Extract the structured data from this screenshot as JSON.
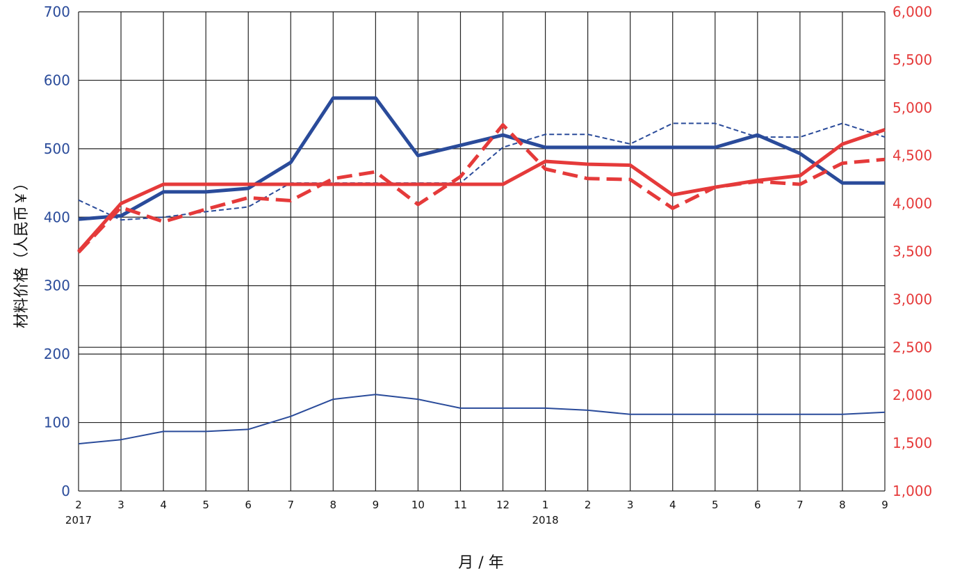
{
  "chart_data": {
    "type": "line",
    "title": "",
    "xlabel": "月 / 年",
    "ylabel": "材料价格（人民币￥）",
    "y2label": "",
    "x_ticks": [
      "2",
      "3",
      "4",
      "5",
      "6",
      "7",
      "8",
      "9",
      "10",
      "11",
      "12",
      "1",
      "2",
      "3",
      "4",
      "5",
      "6",
      "7",
      "8",
      "9"
    ],
    "x_year_labels": [
      {
        "index": 0,
        "label": "2017"
      },
      {
        "index": 11,
        "label": "2018"
      }
    ],
    "ylim": [
      0,
      700
    ],
    "y_ticks": [
      "0",
      "100",
      "200",
      "300",
      "400",
      "500",
      "600",
      "700"
    ],
    "y2lim": [
      1000,
      6000
    ],
    "y2_ticks": [
      "1,000",
      "1,500",
      "2,000",
      "2,500",
      "3,000",
      "3,500",
      "4,000",
      "4,500",
      "5,000",
      "5,500",
      "6,000"
    ],
    "grid": true,
    "colors": {
      "blue": "#2a4b9a",
      "red": "#e53a3a"
    },
    "series": [
      {
        "axis": "left",
        "style": "thick-solid",
        "color": "#2a4b9a",
        "values": [
          397,
          402,
          437,
          437,
          442,
          480,
          574,
          574,
          490,
          505,
          520,
          502,
          502,
          502,
          502,
          502,
          520,
          493,
          450,
          450
        ]
      },
      {
        "axis": "left",
        "style": "thin-dashed",
        "color": "#2a4b9a",
        "values": [
          425,
          396,
          400,
          408,
          415,
          450,
          450,
          450,
          450,
          450,
          502,
          521,
          521,
          507,
          537,
          537,
          517,
          517,
          537,
          517
        ]
      },
      {
        "axis": "left",
        "style": "thin-solid",
        "color": "#2a4b9a",
        "values": [
          69,
          75,
          87,
          87,
          90,
          109,
          134,
          141,
          134,
          121,
          121,
          121,
          118,
          112,
          112,
          112,
          112,
          112,
          112,
          115
        ]
      },
      {
        "axis": "right",
        "style": "thick-solid",
        "color": "#e53a3a",
        "values": [
          3500,
          4000,
          4200,
          4200,
          4200,
          4200,
          4200,
          4200,
          4200,
          4200,
          4200,
          4440,
          4410,
          4400,
          4090,
          4170,
          4240,
          4290,
          4620,
          4770
        ]
      },
      {
        "axis": "right",
        "style": "thick-dashed",
        "color": "#e53a3a",
        "values": [
          3490,
          3960,
          3810,
          3940,
          4060,
          4030,
          4260,
          4330,
          3990,
          4280,
          4820,
          4360,
          4260,
          4250,
          3950,
          4170,
          4230,
          4200,
          4420,
          4460
        ]
      }
    ]
  }
}
